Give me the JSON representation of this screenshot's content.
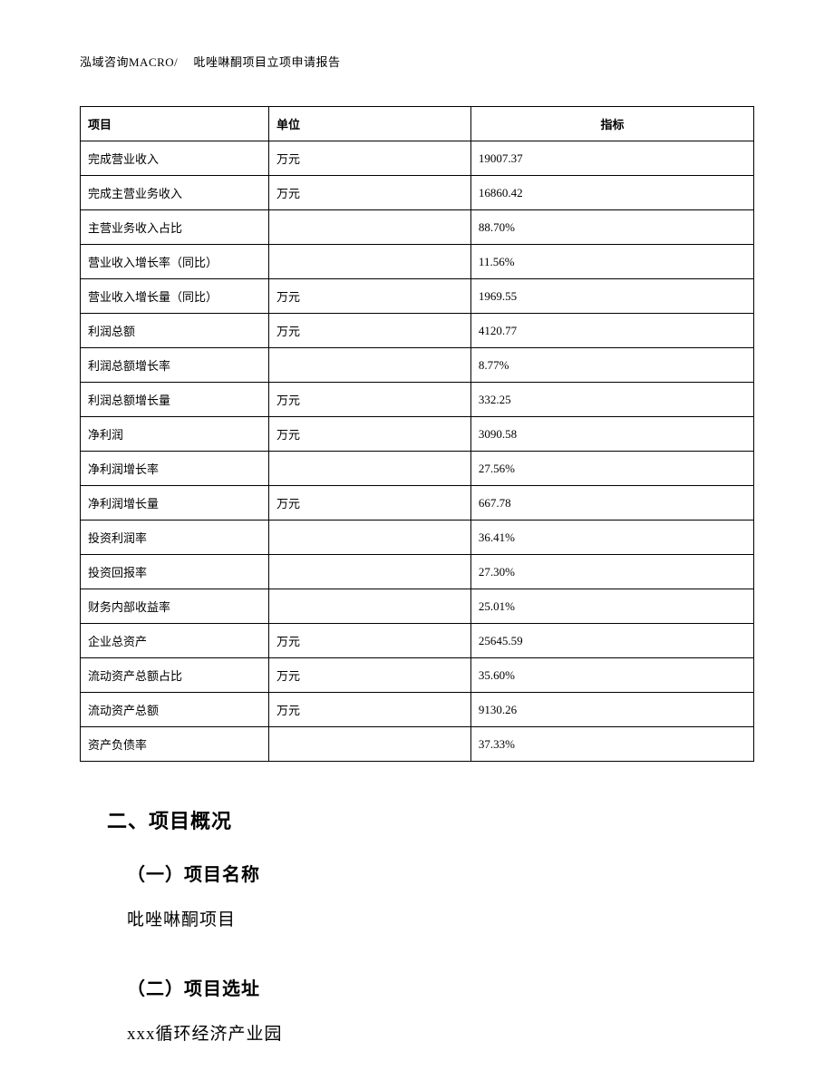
{
  "header": {
    "text": "泓域咨询MACRO/　 吡唑啉酮项目立项申请报告"
  },
  "table": {
    "columns": [
      "项目",
      "单位",
      "指标"
    ],
    "column_widths": [
      "28%",
      "30%",
      "42%"
    ],
    "border_color": "#000000",
    "font_size": 13,
    "rows": [
      [
        "完成营业收入",
        "万元",
        "19007.37"
      ],
      [
        "完成主营业务收入",
        "万元",
        "16860.42"
      ],
      [
        "主营业务收入占比",
        "",
        "88.70%"
      ],
      [
        "营业收入增长率（同比）",
        "",
        "11.56%"
      ],
      [
        "营业收入增长量（同比）",
        "万元",
        "1969.55"
      ],
      [
        "利润总额",
        "万元",
        "4120.77"
      ],
      [
        "利润总额增长率",
        "",
        "8.77%"
      ],
      [
        "利润总额增长量",
        "万元",
        "332.25"
      ],
      [
        "净利润",
        "万元",
        "3090.58"
      ],
      [
        "净利润增长率",
        "",
        "27.56%"
      ],
      [
        "净利润增长量",
        "万元",
        "667.78"
      ],
      [
        "投资利润率",
        "",
        "36.41%"
      ],
      [
        "投资回报率",
        "",
        "27.30%"
      ],
      [
        "财务内部收益率",
        "",
        "25.01%"
      ],
      [
        "企业总资产",
        "万元",
        "25645.59"
      ],
      [
        "流动资产总额占比",
        "万元",
        "35.60%"
      ],
      [
        "流动资产总额",
        "万元",
        "9130.26"
      ],
      [
        "资产负债率",
        "",
        "37.33%"
      ]
    ]
  },
  "sections": {
    "main_heading": "二、项目概况",
    "sub1_heading": "（一）项目名称",
    "sub1_body": "吡唑啉酮项目",
    "sub2_heading": "（二）项目选址",
    "sub2_body": "xxx循环经济产业园"
  },
  "colors": {
    "text": "#000000",
    "background": "#ffffff",
    "border": "#000000"
  },
  "typography": {
    "body_font": "SimSun",
    "header_fontsize": 13,
    "heading_fontsize": 22,
    "subheading_fontsize": 20,
    "body_fontsize": 19,
    "table_fontsize": 13
  }
}
